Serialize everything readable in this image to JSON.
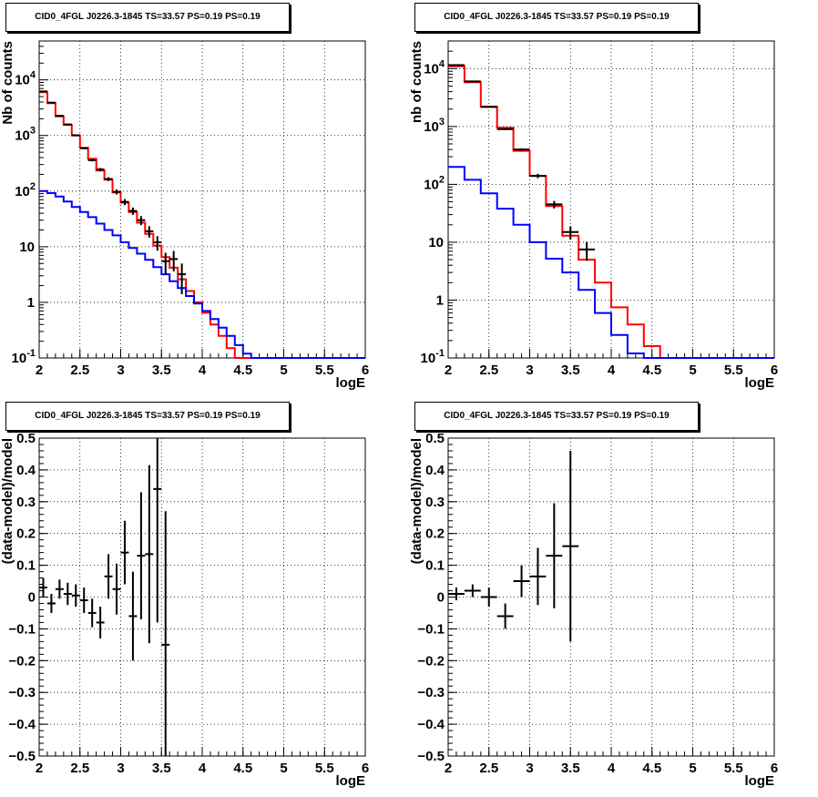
{
  "chart_data": [
    {
      "type": "step-histogram",
      "title": "CID0_4FGL J0226.3-1845 TS=33.57 PS=0.19 PS=0.19",
      "xlabel": "logE",
      "ylabel": "Nb of counts",
      "xlim": [
        2,
        6
      ],
      "ylim": [
        0.1,
        50000
      ],
      "yscale": "log",
      "grid": true,
      "xticks": [
        "2",
        "2.5",
        "3",
        "3.5",
        "4",
        "4.5",
        "5",
        "5.5",
        "6"
      ],
      "yticks": [
        {
          "value": 0.1,
          "label": "10",
          "sup": "-1"
        },
        {
          "value": 1,
          "label": "1",
          "sup": ""
        },
        {
          "value": 10,
          "label": "10",
          "sup": ""
        },
        {
          "value": 100,
          "label": "10",
          "sup": "2"
        },
        {
          "value": 1000,
          "label": "10",
          "sup": "3"
        },
        {
          "value": 10000,
          "label": "10",
          "sup": "4"
        }
      ],
      "bin_edges": [
        2.0,
        2.1,
        2.2,
        2.3,
        2.4,
        2.5,
        2.6,
        2.7,
        2.8,
        2.9,
        3.0,
        3.1,
        3.2,
        3.3,
        3.4,
        3.5,
        3.6,
        3.7,
        3.8,
        3.9,
        4.0,
        4.1,
        4.2,
        4.3,
        4.4,
        4.5,
        4.6,
        4.7,
        4.8,
        4.9,
        5.0,
        5.1,
        5.2,
        5.3,
        5.4,
        5.5,
        5.6,
        5.7,
        5.8,
        5.9,
        6.0
      ],
      "series": [
        {
          "color": "#ff0000",
          "values": [
            6000,
            3800,
            2200,
            1550,
            1000,
            600,
            380,
            235,
            160,
            95,
            62,
            42,
            27,
            17,
            10.5,
            6.5,
            4.2,
            2.6,
            1.6,
            1.0,
            0.65,
            0.4,
            0.25,
            0.15,
            0.1,
            0.1,
            0.1,
            0.1,
            0.1,
            0.1,
            0.1,
            0.1,
            0.1,
            0.1,
            0.1,
            0.1,
            0.1,
            0.1,
            0.1,
            0.1
          ]
        },
        {
          "color": "#0000ff",
          "values": [
            100,
            92,
            80,
            65,
            52,
            42,
            34,
            26,
            20,
            16,
            12,
            9.5,
            7.5,
            5.8,
            4.3,
            3.2,
            2.4,
            1.8,
            1.3,
            0.95,
            0.7,
            0.5,
            0.35,
            0.25,
            0.17,
            0.12,
            0.1,
            0.1,
            0.1,
            0.1,
            0.1,
            0.1,
            0.1,
            0.1,
            0.1,
            0.1,
            0.1,
            0.1,
            0.1,
            0.1
          ]
        }
      ],
      "data_points": {
        "color": "#000000",
        "x": [
          2.05,
          2.15,
          2.25,
          2.35,
          2.45,
          2.55,
          2.65,
          2.75,
          2.85,
          2.95,
          3.05,
          3.15,
          3.25,
          3.35,
          3.45,
          3.55,
          3.65,
          3.75
        ],
        "y": [
          6200,
          3900,
          2260,
          1580,
          1010,
          590,
          360,
          245,
          165,
          97,
          64,
          44,
          30,
          19,
          12,
          5.5,
          6.0,
          3.2
        ],
        "xerr": 0.05,
        "yerr": [
          80,
          60,
          48,
          40,
          32,
          24,
          19,
          16,
          13,
          10,
          8,
          6.6,
          5.5,
          4.4,
          3.5,
          2.3,
          2.4,
          1.8
        ]
      }
    },
    {
      "type": "step-histogram",
      "title": "CID0_4FGL J0226.3-1845 TS=33.57 PS=0.19 PS=0.19",
      "xlabel": "logE",
      "ylabel": "nb of counts",
      "xlim": [
        2,
        6
      ],
      "ylim": [
        0.1,
        30000
      ],
      "yscale": "log",
      "grid": true,
      "xticks": [
        "2",
        "2.5",
        "3",
        "3.5",
        "4",
        "4.5",
        "5",
        "5.5",
        "6"
      ],
      "yticks": [
        {
          "value": 0.1,
          "label": "10",
          "sup": "-1"
        },
        {
          "value": 1,
          "label": "1",
          "sup": ""
        },
        {
          "value": 10,
          "label": "10",
          "sup": ""
        },
        {
          "value": 100,
          "label": "10",
          "sup": "2"
        },
        {
          "value": 1000,
          "label": "10",
          "sup": "3"
        },
        {
          "value": 10000,
          "label": "10",
          "sup": "4"
        }
      ],
      "bin_edges": [
        2.0,
        2.2,
        2.4,
        2.6,
        2.8,
        3.0,
        3.2,
        3.4,
        3.6,
        3.8,
        4.0,
        4.2,
        4.4,
        4.6,
        4.8,
        5.0,
        5.2,
        5.4,
        5.6,
        5.8,
        6.0
      ],
      "series": [
        {
          "color": "#ff0000",
          "values": [
            11000,
            5800,
            2200,
            950,
            380,
            140,
            42,
            13,
            5,
            2,
            0.75,
            0.38,
            0.16,
            0.1,
            0.1,
            0.1,
            0.1,
            0.1,
            0.1,
            0.1
          ]
        },
        {
          "color": "#0000ff",
          "values": [
            200,
            120,
            70,
            38,
            20,
            10,
            5.2,
            3,
            1.5,
            0.6,
            0.25,
            0.12,
            0.1,
            0.1,
            0.1,
            0.1,
            0.1,
            0.1,
            0.1,
            0.1
          ]
        }
      ],
      "data_points": {
        "color": "#000000",
        "x": [
          2.1,
          2.3,
          2.5,
          2.7,
          2.9,
          3.1,
          3.3,
          3.5,
          3.7
        ],
        "y": [
          11500,
          6000,
          2180,
          900,
          400,
          140,
          45,
          15,
          7.5
        ],
        "xerr": 0.1,
        "yerr": [
          107,
          77,
          47,
          30,
          20,
          12,
          6.7,
          3.9,
          2.7
        ]
      }
    },
    {
      "type": "scatter-errorbars",
      "title": "CID0_4FGL J0226.3-1845 TS=33.57 PS=0.19 PS=0.19",
      "xlabel": "logE",
      "ylabel": "(data-model)/model",
      "xlim": [
        2,
        6
      ],
      "ylim": [
        -0.5,
        0.5
      ],
      "grid": true,
      "xticks": [
        "2",
        "2.5",
        "3",
        "3.5",
        "4",
        "4.5",
        "5",
        "5.5",
        "6"
      ],
      "yticks": [
        "-0.5",
        "-0.4",
        "-0.3",
        "-0.2",
        "-0.1",
        "0",
        "0.1",
        "0.2",
        "0.3",
        "0.4",
        "0.5"
      ],
      "points": {
        "color": "#000000",
        "x": [
          2.05,
          2.15,
          2.25,
          2.35,
          2.45,
          2.55,
          2.65,
          2.75,
          2.85,
          2.95,
          3.05,
          3.15,
          3.25,
          3.35,
          3.45,
          3.55
        ],
        "y": [
          0.03,
          -0.02,
          0.025,
          0.01,
          0.005,
          -0.01,
          -0.05,
          -0.08,
          0.065,
          0.025,
          0.14,
          -0.06,
          0.13,
          0.135,
          0.34,
          -0.15
        ],
        "xerr": 0.05,
        "yerr": [
          0.03,
          0.03,
          0.03,
          0.035,
          0.035,
          0.04,
          0.045,
          0.05,
          0.07,
          0.08,
          0.1,
          0.14,
          0.2,
          0.28,
          0.42,
          0.42
        ]
      }
    },
    {
      "type": "scatter-errorbars",
      "title": "CID0_4FGL J0226.3-1845 TS=33.57 PS=0.19 PS=0.19",
      "xlabel": "logE",
      "ylabel": "(data-model)/model",
      "xlim": [
        2,
        6
      ],
      "ylim": [
        -0.5,
        0.5
      ],
      "grid": true,
      "xticks": [
        "2",
        "2.5",
        "3",
        "3.5",
        "4",
        "4.5",
        "5",
        "5.5",
        "6"
      ],
      "yticks": [
        "-0.5",
        "-0.4",
        "-0.3",
        "-0.2",
        "-0.1",
        "0",
        "0.1",
        "0.2",
        "0.3",
        "0.4",
        "0.5"
      ],
      "points": {
        "color": "#000000",
        "x": [
          2.1,
          2.3,
          2.5,
          2.7,
          2.9,
          3.1,
          3.3,
          3.5
        ],
        "y": [
          0.01,
          0.02,
          0.0,
          -0.06,
          0.05,
          0.065,
          0.13,
          0.16
        ],
        "xerr": 0.1,
        "yerr": [
          0.02,
          0.02,
          0.03,
          0.04,
          0.05,
          0.09,
          0.165,
          0.3
        ]
      }
    }
  ]
}
